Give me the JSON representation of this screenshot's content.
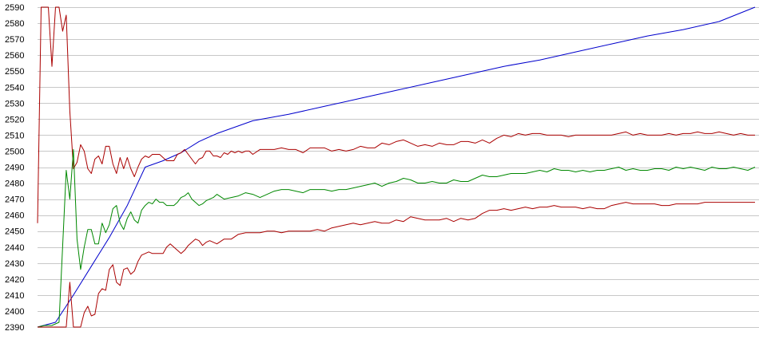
{
  "chart_data": {
    "type": "line",
    "title": "",
    "xlabel": "",
    "ylabel": "",
    "ylim": [
      2390,
      2590
    ],
    "yticks": [
      2390,
      2400,
      2410,
      2420,
      2430,
      2440,
      2450,
      2460,
      2470,
      2480,
      2490,
      2500,
      2510,
      2520,
      2530,
      2540,
      2550,
      2560,
      2570,
      2580,
      2590
    ],
    "grid": "horizontal",
    "legend": "none",
    "series": [
      {
        "color": "#0000cc",
        "x": [
          0,
          5,
          10,
          15,
          20,
          25,
          30,
          35,
          40,
          45,
          50,
          60,
          70,
          80,
          90,
          100,
          110,
          120,
          130,
          140,
          150,
          160,
          170,
          180,
          190,
          200
        ],
        "values": [
          2390,
          2393,
          2410,
          2428,
          2446,
          2466,
          2490,
          2494,
          2499,
          2506,
          2511,
          2519,
          2523,
          2528,
          2533,
          2538,
          2543,
          2548,
          2553,
          2557,
          2562,
          2567,
          2572,
          2576,
          2581,
          2590
        ]
      },
      {
        "color": "#aa0000",
        "x": [
          0,
          1,
          2,
          3,
          4,
          5,
          6,
          7,
          8,
          9,
          10,
          11,
          12,
          13,
          14,
          15,
          16,
          17,
          18,
          19,
          20,
          21,
          22,
          23,
          24,
          25,
          26,
          27,
          28,
          29,
          30,
          31,
          32,
          33,
          34,
          35,
          36,
          37,
          38,
          39,
          40,
          41,
          42,
          43,
          44,
          45,
          46,
          47,
          48,
          49,
          50,
          51,
          52,
          53,
          54,
          55,
          56,
          57,
          58,
          59,
          60,
          62,
          64,
          66,
          68,
          70,
          72,
          74,
          76,
          78,
          80,
          82,
          84,
          86,
          88,
          90,
          92,
          94,
          96,
          98,
          100,
          102,
          104,
          106,
          108,
          110,
          112,
          114,
          116,
          118,
          120,
          122,
          124,
          126,
          128,
          130,
          132,
          134,
          136,
          138,
          140,
          142,
          144,
          146,
          148,
          150,
          152,
          154,
          156,
          158,
          160,
          162,
          164,
          166,
          168,
          170,
          172,
          174,
          176,
          178,
          180,
          182,
          184,
          186,
          188,
          190,
          192,
          194,
          196,
          198,
          200
        ],
        "values": [
          2455,
          2590,
          2590,
          2590,
          2553,
          2590,
          2590,
          2575,
          2585,
          2525,
          2489,
          2493,
          2504,
          2500,
          2489,
          2486,
          2495,
          2497,
          2492,
          2503,
          2503,
          2492,
          2486,
          2496,
          2489,
          2496,
          2489,
          2484,
          2490,
          2495,
          2497,
          2496,
          2498,
          2498,
          2498,
          2496,
          2494,
          2494,
          2494,
          2498,
          2499,
          2501,
          2498,
          2495,
          2492,
          2495,
          2496,
          2500,
          2500,
          2497,
          2497,
          2496,
          2499,
          2498,
          2500,
          2499,
          2500,
          2499,
          2500,
          2500,
          2498,
          2501,
          2501,
          2501,
          2502,
          2501,
          2501,
          2499,
          2502,
          2502,
          2502,
          2500,
          2501,
          2500,
          2501,
          2503,
          2502,
          2502,
          2505,
          2504,
          2506,
          2507,
          2505,
          2503,
          2504,
          2503,
          2505,
          2504,
          2504,
          2506,
          2506,
          2505,
          2507,
          2505,
          2508,
          2510,
          2509,
          2511,
          2510,
          2511,
          2511,
          2510,
          2510,
          2510,
          2509,
          2510,
          2510,
          2510,
          2510,
          2510,
          2510,
          2511,
          2512,
          2510,
          2511,
          2510,
          2510,
          2510,
          2511,
          2510,
          2511,
          2511,
          2512,
          2511,
          2511,
          2512,
          2511,
          2510,
          2511,
          2510,
          2510
        ]
      },
      {
        "color": "#008800",
        "x": [
          0,
          2,
          4,
          6,
          8,
          9,
          10,
          11,
          12,
          13,
          14,
          15,
          16,
          17,
          18,
          19,
          20,
          21,
          22,
          23,
          24,
          25,
          26,
          27,
          28,
          29,
          30,
          31,
          32,
          33,
          34,
          35,
          36,
          37,
          38,
          39,
          40,
          41,
          42,
          43,
          44,
          45,
          46,
          47,
          48,
          49,
          50,
          52,
          54,
          56,
          58,
          60,
          62,
          64,
          66,
          68,
          70,
          72,
          74,
          76,
          78,
          80,
          82,
          84,
          86,
          88,
          90,
          92,
          94,
          96,
          98,
          100,
          102,
          104,
          106,
          108,
          110,
          112,
          114,
          116,
          118,
          120,
          122,
          124,
          126,
          128,
          130,
          132,
          134,
          136,
          138,
          140,
          142,
          144,
          146,
          148,
          150,
          152,
          154,
          156,
          158,
          160,
          162,
          164,
          166,
          168,
          170,
          172,
          174,
          176,
          178,
          180,
          182,
          184,
          186,
          188,
          190,
          192,
          194,
          196,
          198,
          200
        ],
        "values": [
          2390,
          2391,
          2391,
          2393,
          2488,
          2470,
          2501,
          2445,
          2426,
          2440,
          2451,
          2451,
          2442,
          2442,
          2455,
          2449,
          2454,
          2464,
          2466,
          2455,
          2451,
          2458,
          2462,
          2457,
          2455,
          2463,
          2466,
          2468,
          2467,
          2470,
          2468,
          2468,
          2466,
          2466,
          2466,
          2468,
          2471,
          2472,
          2474,
          2470,
          2468,
          2466,
          2467,
          2469,
          2470,
          2471,
          2473,
          2470,
          2471,
          2472,
          2474,
          2473,
          2471,
          2473,
          2475,
          2476,
          2476,
          2475,
          2474,
          2476,
          2476,
          2476,
          2475,
          2476,
          2476,
          2477,
          2478,
          2479,
          2480,
          2478,
          2480,
          2481,
          2483,
          2482,
          2480,
          2480,
          2481,
          2480,
          2480,
          2482,
          2481,
          2481,
          2483,
          2485,
          2484,
          2484,
          2485,
          2486,
          2486,
          2486,
          2487,
          2488,
          2487,
          2489,
          2488,
          2488,
          2487,
          2488,
          2487,
          2488,
          2488,
          2489,
          2490,
          2488,
          2489,
          2488,
          2488,
          2489,
          2489,
          2488,
          2490,
          2489,
          2490,
          2489,
          2488,
          2490,
          2489,
          2489,
          2490,
          2489,
          2488,
          2490
        ]
      },
      {
        "color": "#aa0000",
        "x": [
          0,
          2,
          4,
          6,
          8,
          9,
          10,
          11,
          12,
          13,
          14,
          15,
          16,
          17,
          18,
          19,
          20,
          21,
          22,
          23,
          24,
          25,
          26,
          27,
          28,
          29,
          30,
          31,
          32,
          33,
          34,
          35,
          36,
          37,
          38,
          39,
          40,
          41,
          42,
          43,
          44,
          45,
          46,
          47,
          48,
          49,
          50,
          52,
          54,
          56,
          58,
          60,
          62,
          64,
          66,
          68,
          70,
          72,
          74,
          76,
          78,
          80,
          82,
          84,
          86,
          88,
          90,
          92,
          94,
          96,
          98,
          100,
          102,
          104,
          106,
          108,
          110,
          112,
          114,
          116,
          118,
          120,
          122,
          124,
          126,
          128,
          130,
          132,
          134,
          136,
          138,
          140,
          142,
          144,
          146,
          148,
          150,
          152,
          154,
          156,
          158,
          160,
          162,
          164,
          166,
          168,
          170,
          172,
          174,
          176,
          178,
          180,
          182,
          184,
          186,
          188,
          190,
          192,
          194,
          196,
          198,
          200
        ],
        "values": [
          2390,
          2390,
          2390,
          2390,
          2390,
          2418,
          2390,
          2390,
          2390,
          2399,
          2403,
          2397,
          2398,
          2411,
          2414,
          2413,
          2426,
          2429,
          2418,
          2416,
          2426,
          2427,
          2423,
          2425,
          2431,
          2435,
          2436,
          2437,
          2436,
          2436,
          2436,
          2436,
          2440,
          2442,
          2440,
          2438,
          2436,
          2438,
          2441,
          2443,
          2445,
          2444,
          2441,
          2443,
          2444,
          2443,
          2442,
          2445,
          2445,
          2448,
          2449,
          2449,
          2449,
          2450,
          2450,
          2449,
          2450,
          2450,
          2450,
          2450,
          2451,
          2450,
          2452,
          2453,
          2454,
          2455,
          2454,
          2455,
          2456,
          2455,
          2455,
          2457,
          2456,
          2459,
          2458,
          2457,
          2457,
          2457,
          2458,
          2456,
          2458,
          2457,
          2458,
          2461,
          2463,
          2463,
          2464,
          2463,
          2464,
          2465,
          2464,
          2465,
          2465,
          2466,
          2465,
          2465,
          2465,
          2464,
          2465,
          2464,
          2464,
          2466,
          2467,
          2468,
          2467,
          2467,
          2467,
          2467,
          2466,
          2466,
          2467,
          2467,
          2467,
          2467,
          2468,
          2468,
          2468,
          2468,
          2468,
          2468,
          2468,
          2468
        ]
      }
    ]
  }
}
